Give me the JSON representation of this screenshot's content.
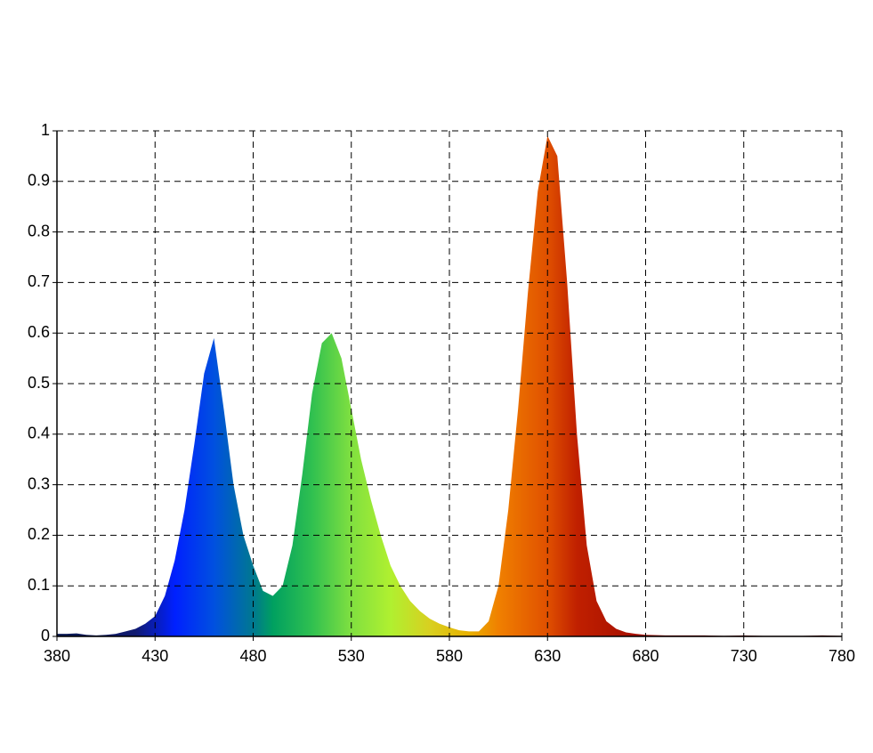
{
  "chart_data": {
    "type": "area",
    "x": [
      380,
      385,
      390,
      395,
      400,
      405,
      410,
      415,
      420,
      425,
      430,
      435,
      440,
      445,
      450,
      455,
      460,
      465,
      470,
      475,
      480,
      485,
      490,
      495,
      500,
      505,
      510,
      515,
      520,
      525,
      530,
      535,
      540,
      545,
      550,
      555,
      560,
      565,
      570,
      575,
      580,
      585,
      590,
      595,
      600,
      605,
      610,
      615,
      620,
      625,
      630,
      635,
      640,
      645,
      650,
      655,
      660,
      665,
      670,
      675,
      680,
      690,
      700,
      710,
      720,
      730,
      740,
      750,
      760,
      770,
      780
    ],
    "values": [
      0.005,
      0.005,
      0.006,
      0.003,
      0.002,
      0.003,
      0.005,
      0.01,
      0.015,
      0.025,
      0.04,
      0.08,
      0.15,
      0.25,
      0.38,
      0.52,
      0.59,
      0.45,
      0.3,
      0.2,
      0.14,
      0.09,
      0.08,
      0.1,
      0.18,
      0.32,
      0.48,
      0.58,
      0.6,
      0.55,
      0.45,
      0.35,
      0.27,
      0.2,
      0.14,
      0.1,
      0.07,
      0.05,
      0.035,
      0.025,
      0.018,
      0.012,
      0.01,
      0.01,
      0.03,
      0.1,
      0.25,
      0.45,
      0.68,
      0.88,
      0.99,
      0.95,
      0.7,
      0.4,
      0.18,
      0.07,
      0.03,
      0.015,
      0.008,
      0.005,
      0.003,
      0.002,
      0.002,
      0.002,
      0.001,
      0.002,
      0.001,
      0.001,
      0.001,
      0.002,
      0.001
    ],
    "xlim": [
      380,
      780
    ],
    "ylim": [
      0,
      1
    ],
    "xticks": [
      380,
      430,
      480,
      530,
      580,
      630,
      680,
      730,
      780
    ],
    "yticks": [
      0,
      0.1,
      0.2,
      0.3,
      0.4,
      0.5,
      0.6,
      0.7,
      0.8,
      0.9,
      1
    ],
    "grid": true
  }
}
